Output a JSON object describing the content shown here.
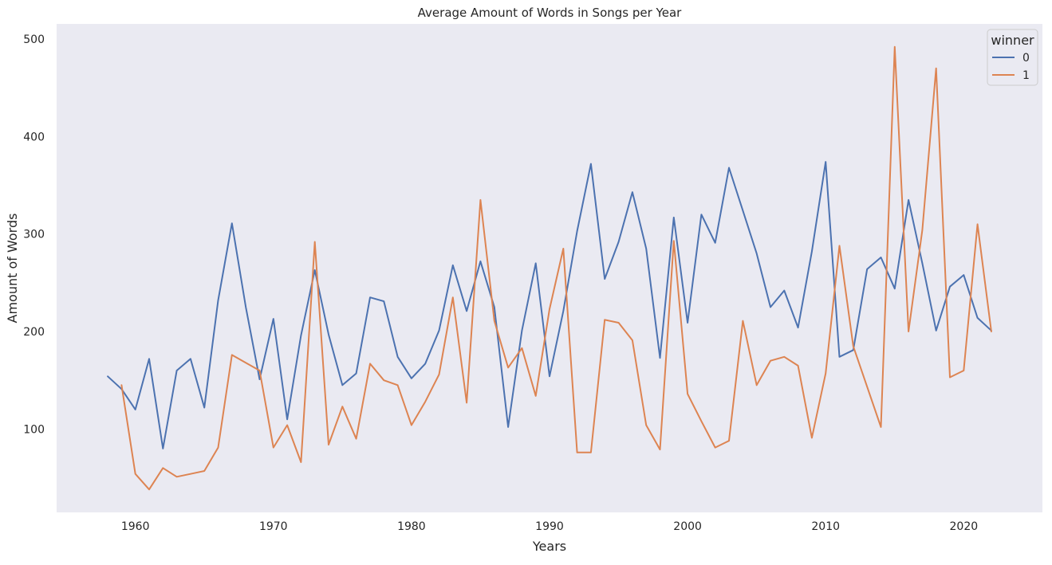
{
  "chart_data": {
    "type": "line",
    "title": "Average Amount of Words in Songs per Year",
    "xlabel": "Years",
    "ylabel": "Amount of Words",
    "xlim": [
      1954.3,
      2025.7
    ],
    "ylim": [
      14.5,
      515.5
    ],
    "xticks": [
      1960,
      1970,
      1980,
      1990,
      2000,
      2010,
      2020
    ],
    "yticks": [
      100,
      200,
      300,
      400,
      500
    ],
    "grid": false,
    "background": "#eaeaf2",
    "legend": {
      "title": "winner",
      "placement": "top-right"
    },
    "series": [
      {
        "name": "0",
        "color": "#4c72b0",
        "x": [
          1958,
          1959,
          1960,
          1961,
          1962,
          1963,
          1964,
          1965,
          1966,
          1967,
          1968,
          1969,
          1970,
          1971,
          1972,
          1973,
          1974,
          1975,
          1976,
          1977,
          1978,
          1979,
          1980,
          1981,
          1982,
          1983,
          1984,
          1985,
          1986,
          1987,
          1988,
          1989,
          1990,
          1991,
          1992,
          1993,
          1994,
          1995,
          1996,
          1997,
          1998,
          1999,
          2000,
          2001,
          2002,
          2003,
          2004,
          2005,
          2006,
          2007,
          2008,
          2009,
          2010,
          2011,
          2012,
          2013,
          2014,
          2015,
          2016,
          2017,
          2018,
          2019,
          2020,
          2021,
          2022
        ],
        "y": [
          154,
          141,
          120,
          172,
          80,
          160,
          172,
          122,
          232,
          311,
          225,
          151,
          213,
          110,
          196,
          263,
          197,
          145,
          157,
          235,
          231,
          174,
          152,
          167,
          201,
          268,
          221,
          272,
          225,
          102,
          201,
          270,
          154,
          221,
          303,
          372,
          254,
          292,
          343,
          285,
          173,
          317,
          209,
          320,
          291,
          368,
          324,
          280,
          225,
          242,
          204,
          282,
          374,
          174,
          181,
          264,
          276,
          244,
          335,
          270,
          201,
          246,
          258,
          214,
          201
        ]
      },
      {
        "name": "1",
        "color": "#dd8452",
        "x": [
          1959,
          1960,
          1961,
          1962,
          1963,
          1964,
          1965,
          1966,
          1967,
          1968,
          1969,
          1970,
          1971,
          1972,
          1973,
          1974,
          1975,
          1976,
          1977,
          1978,
          1979,
          1980,
          1981,
          1982,
          1983,
          1984,
          1985,
          1986,
          1987,
          1988,
          1989,
          1990,
          1991,
          1992,
          1993,
          1994,
          1995,
          1996,
          1997,
          1998,
          1999,
          2000,
          2001,
          2002,
          2003,
          2004,
          2005,
          2006,
          2007,
          2008,
          2009,
          2010,
          2011,
          2012,
          2014,
          2015,
          2016,
          2017,
          2018,
          2019,
          2020,
          2021,
          2022
        ],
        "y": [
          145,
          54,
          38,
          60,
          51,
          54,
          57,
          81,
          176,
          168,
          160,
          81,
          104,
          66,
          292,
          84,
          123,
          90,
          167,
          150,
          145,
          104,
          128,
          156,
          235,
          127,
          335,
          211,
          163,
          183,
          134,
          223,
          285,
          76,
          76,
          212,
          209,
          191,
          104,
          79,
          293,
          136,
          108,
          81,
          88,
          211,
          145,
          170,
          174,
          165,
          91,
          157,
          288,
          185,
          102,
          492,
          200,
          304,
          470,
          153,
          160,
          310,
          200
        ]
      }
    ]
  }
}
